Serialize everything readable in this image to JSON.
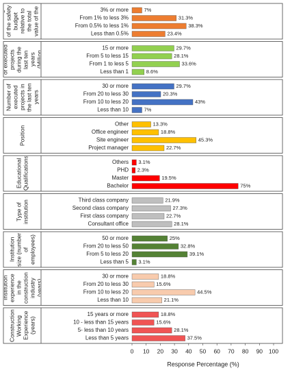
{
  "chart_data": {
    "type": "bar",
    "x_label": "Response Percentage (%)",
    "xlim": [
      0,
      100
    ],
    "xticks": [
      0,
      10,
      20,
      30,
      40,
      50,
      60,
      70,
      80,
      90,
      100
    ],
    "groups": [
      {
        "name": "Percentage of the safety budget relative to the total value of the project",
        "color": "#ed7d31",
        "categories": [
          "3% or more",
          "From 1% to less 3%",
          "From 0.5% to less 1%",
          "Less than 0.5%"
        ],
        "values": [
          7,
          31.3,
          38.3,
          23.4
        ],
        "value_labels": [
          "7%",
          "31.3%",
          "38.3%",
          "23.4%"
        ]
      },
      {
        "name": "Total value of executed projects during the last ten years (Million dollars)",
        "color": "#92d050",
        "categories": [
          "15 or more",
          "From 5 to less 15",
          "From 1 to less 5",
          "Less than 1"
        ],
        "values": [
          29.7,
          28.1,
          33.6,
          8.6
        ],
        "value_labels": [
          "29.7%",
          "28.1%",
          "33.6%",
          "8.6%"
        ]
      },
      {
        "name": "Number of executed projects in the last ten years",
        "color": "#4472c4",
        "categories": [
          "30 or more",
          "From 20 to less 30",
          "From 10 to less 20",
          "Less than 10"
        ],
        "values": [
          29.7,
          20.3,
          43,
          7
        ],
        "value_labels": [
          "29.7%",
          "20.3%",
          "43%",
          "7%"
        ]
      },
      {
        "name": "Position",
        "color": "#ffc000",
        "categories": [
          "Other",
          "Office engineer",
          "Site engineer",
          "Project manager"
        ],
        "values": [
          13.3,
          18.8,
          45.3,
          22.7
        ],
        "value_labels": [
          "13.3%",
          "18.8%",
          "45.3%",
          "22.7%"
        ]
      },
      {
        "name": "Educational Qualifications",
        "color": "#ff0000",
        "categories": [
          "Others",
          "PHD",
          "Master",
          "Bachelor"
        ],
        "values": [
          3.1,
          2.3,
          19.5,
          75
        ],
        "value_labels": [
          "3.1%",
          "2.3%",
          "19.5%",
          "75%"
        ]
      },
      {
        "name": "Type of institution",
        "color": "#bfbfbf",
        "categories": [
          "Third class company",
          "Second class company",
          "First class company",
          "Consultant office"
        ],
        "values": [
          21.9,
          27.3,
          22.7,
          28.1
        ],
        "value_labels": [
          "21.9%",
          "27.3%",
          "22.7%",
          "28.1%"
        ]
      },
      {
        "name": "Institution size (number of employees)",
        "color": "#548235",
        "categories": [
          "50 or more",
          "From 20 to less 50",
          "From 5 to less 20",
          "Less than 5"
        ],
        "values": [
          25,
          32.8,
          39.1,
          3.1
        ],
        "value_labels": [
          "25%",
          "32.8%",
          "39.1%",
          "3.1%"
        ]
      },
      {
        "name": "Institution experience in the construction industry (years)",
        "color": "#f8cbad",
        "categories": [
          "30 or more",
          "From 20 to less 30",
          "From 10 to less 20",
          "Less than 10"
        ],
        "values": [
          18.8,
          15.6,
          44.5,
          21.1
        ],
        "value_labels": [
          "18.8%",
          "15.6%",
          "44.5%",
          "21.1%"
        ]
      },
      {
        "name": "Construction Working Experience (years)",
        "color": "#f05454",
        "categories": [
          "15 years or more",
          "10 - less than 15 years",
          "5- less than 10 years",
          "Less than 5 years"
        ],
        "values": [
          18.8,
          15.6,
          28.1,
          37.5
        ],
        "value_labels": [
          "18.8%",
          "15.6%",
          "28.1%",
          "37.5%"
        ]
      }
    ]
  }
}
